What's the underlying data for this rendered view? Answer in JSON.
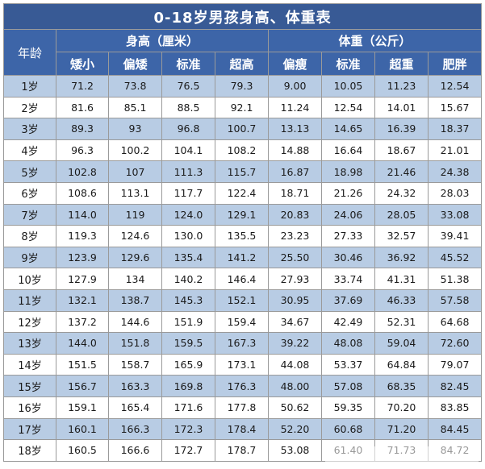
{
  "title": "0-18岁男孩身高、体重表",
  "headers": {
    "age": "年龄",
    "height_group": "身高（厘米）",
    "weight_group": "体重（公斤）",
    "height_sub": [
      "矮小",
      "偏矮",
      "标准",
      "超高"
    ],
    "weight_sub": [
      "偏瘦",
      "标准",
      "超重",
      "肥胖"
    ]
  },
  "rows": [
    {
      "age": "1岁",
      "values": [
        "71.2",
        "73.8",
        "76.5",
        "79.3",
        "9.00",
        "10.05",
        "11.23",
        "12.54"
      ]
    },
    {
      "age": "2岁",
      "values": [
        "81.6",
        "85.1",
        "88.5",
        "92.1",
        "11.24",
        "12.54",
        "14.01",
        "15.67"
      ]
    },
    {
      "age": "3岁",
      "values": [
        "89.3",
        "93",
        "96.8",
        "100.7",
        "13.13",
        "14.65",
        "16.39",
        "18.37"
      ]
    },
    {
      "age": "4岁",
      "values": [
        "96.3",
        "100.2",
        "104.1",
        "108.2",
        "14.88",
        "16.64",
        "18.67",
        "21.01"
      ]
    },
    {
      "age": "5岁",
      "values": [
        "102.8",
        "107",
        "111.3",
        "115.7",
        "16.87",
        "18.98",
        "21.46",
        "24.38"
      ]
    },
    {
      "age": "6岁",
      "values": [
        "108.6",
        "113.1",
        "117.7",
        "122.4",
        "18.71",
        "21.26",
        "24.32",
        "28.03"
      ]
    },
    {
      "age": "7岁",
      "values": [
        "114.0",
        "119",
        "124.0",
        "129.1",
        "20.83",
        "24.06",
        "28.05",
        "33.08"
      ]
    },
    {
      "age": "8岁",
      "values": [
        "119.3",
        "124.6",
        "130.0",
        "135.5",
        "23.23",
        "27.33",
        "32.57",
        "39.41"
      ]
    },
    {
      "age": "9岁",
      "values": [
        "123.9",
        "129.6",
        "135.4",
        "141.2",
        "25.50",
        "30.46",
        "36.92",
        "45.52"
      ]
    },
    {
      "age": "10岁",
      "values": [
        "127.9",
        "134",
        "140.2",
        "146.4",
        "27.93",
        "33.74",
        "41.31",
        "51.38"
      ]
    },
    {
      "age": "11岁",
      "values": [
        "132.1",
        "138.7",
        "145.3",
        "152.1",
        "30.95",
        "37.69",
        "46.33",
        "57.58"
      ]
    },
    {
      "age": "12岁",
      "values": [
        "137.2",
        "144.6",
        "151.9",
        "159.4",
        "34.67",
        "42.49",
        "52.31",
        "64.68"
      ]
    },
    {
      "age": "13岁",
      "values": [
        "144.0",
        "151.8",
        "159.5",
        "167.3",
        "39.22",
        "48.08",
        "59.04",
        "72.60"
      ]
    },
    {
      "age": "14岁",
      "values": [
        "151.5",
        "158.7",
        "165.9",
        "173.1",
        "44.08",
        "53.37",
        "64.84",
        "79.07"
      ]
    },
    {
      "age": "15岁",
      "values": [
        "156.7",
        "163.3",
        "169.8",
        "176.3",
        "48.00",
        "57.08",
        "68.35",
        "82.45"
      ]
    },
    {
      "age": "16岁",
      "values": [
        "159.1",
        "165.4",
        "171.6",
        "177.8",
        "50.62",
        "59.35",
        "70.20",
        "83.85"
      ]
    },
    {
      "age": "17岁",
      "values": [
        "160.1",
        "166.3",
        "172.3",
        "178.4",
        "52.20",
        "60.68",
        "71.20",
        "84.45"
      ]
    },
    {
      "age": "18岁",
      "values": [
        "160.5",
        "166.6",
        "172.7",
        "178.7",
        "53.08",
        "61.40",
        "71.73",
        "84.72"
      ]
    }
  ]
}
